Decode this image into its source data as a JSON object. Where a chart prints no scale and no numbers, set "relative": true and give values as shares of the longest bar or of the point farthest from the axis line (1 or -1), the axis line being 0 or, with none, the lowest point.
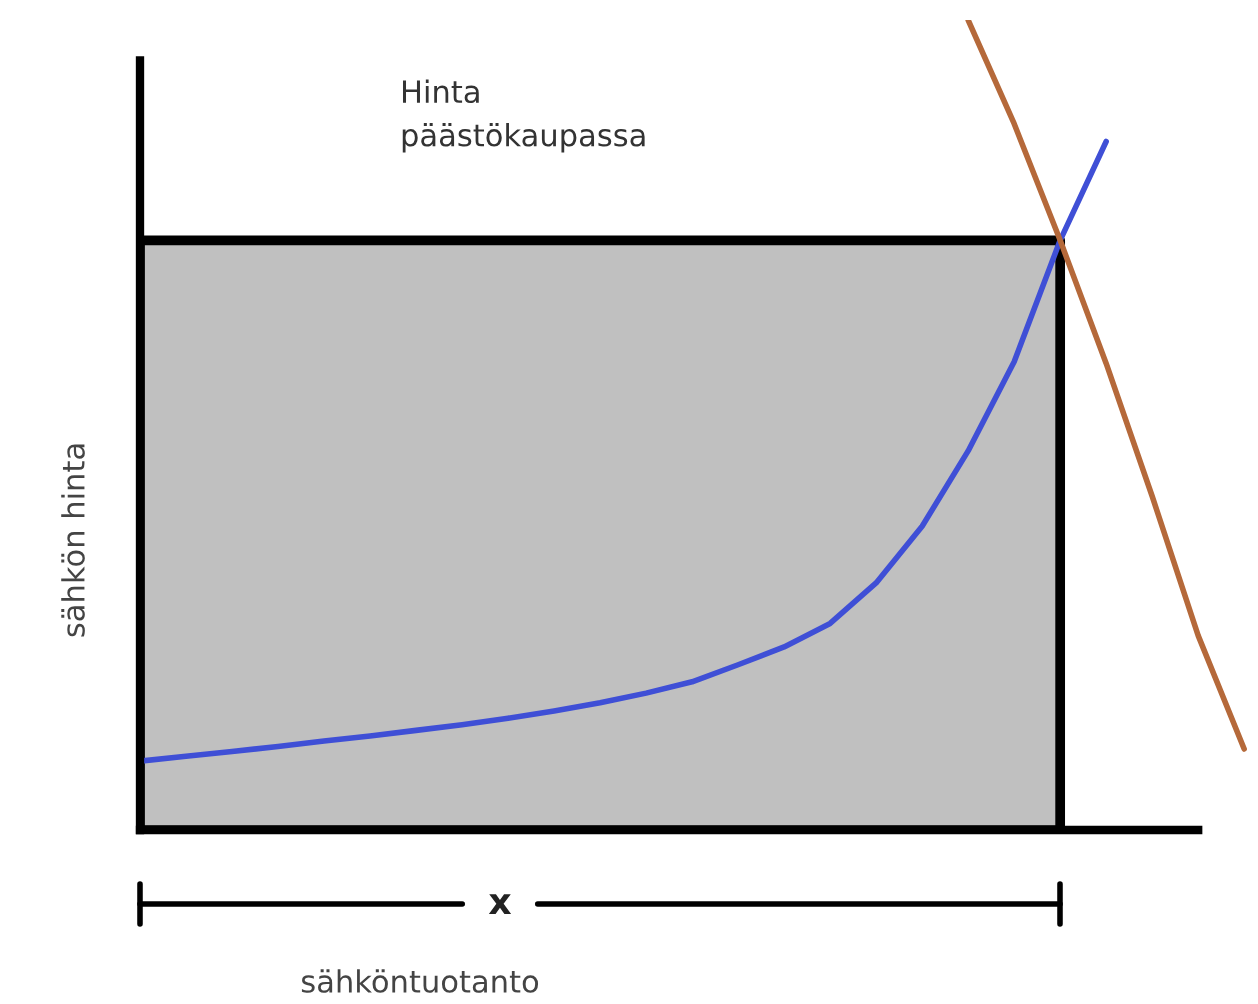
{
  "chart_data": {
    "type": "line",
    "relative": true,
    "ylabel": "sähkön hinta",
    "xlabel": "sähköntuotanto",
    "categories": [
      null,
      null,
      null,
      null,
      null,
      null,
      null,
      null,
      null,
      null,
      null,
      null,
      null,
      null,
      null,
      null,
      null,
      null,
      null,
      null,
      null,
      null,
      null,
      null,
      null
    ],
    "annotations": [
      "Hinta\npäästökaupassa",
      "x"
    ],
    "series": [
      {
        "type": "area",
        "color": "#c0c0c0",
        "values": [
          0.728,
          0.728,
          0.728,
          0.728,
          0.728,
          0.728,
          0.728,
          0.728,
          0.728,
          0.728,
          0.728,
          0.728,
          0.728,
          0.728,
          0.728,
          0.728,
          0.728,
          0.728,
          0.728,
          0.728,
          0.728,
          null,
          null,
          null,
          null
        ]
      },
      {
        "color": "#3f4fd6",
        "values": [
          0.085,
          0.091,
          0.097,
          0.103,
          0.11,
          0.116,
          0.123,
          0.13,
          0.138,
          0.147,
          0.157,
          0.169,
          0.183,
          0.204,
          0.226,
          0.255,
          0.305,
          0.375,
          0.468,
          0.578,
          0.728,
          0.85,
          null,
          null,
          null
        ]
      },
      {
        "color": "#b5693a",
        "values": [
          null,
          null,
          null,
          null,
          null,
          null,
          null,
          null,
          null,
          null,
          null,
          null,
          null,
          null,
          null,
          null,
          null,
          null,
          1.0,
          0.872,
          0.728,
          0.576,
          0.412,
          0.24,
          0.1
        ]
      }
    ]
  }
}
